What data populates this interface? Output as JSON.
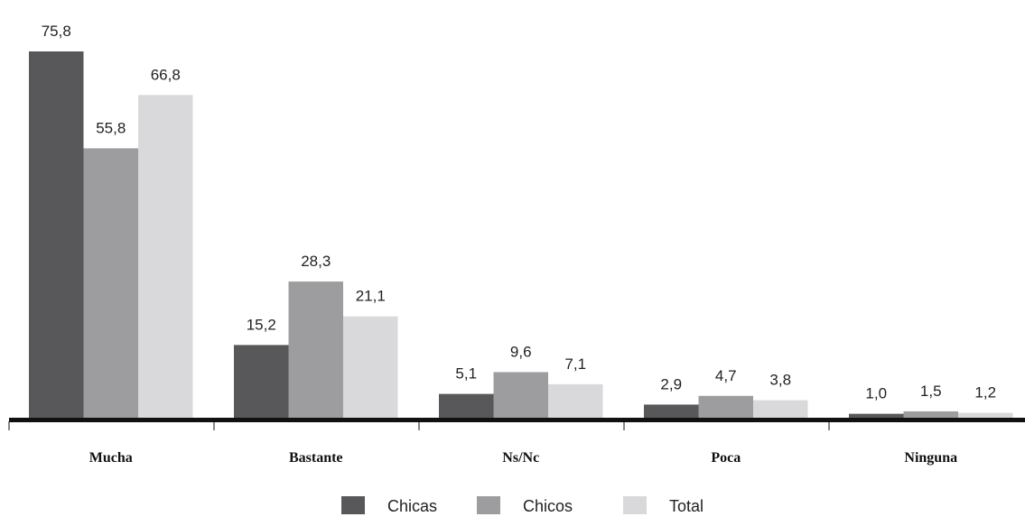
{
  "chart_data": {
    "type": "bar",
    "title": "",
    "xlabel": "",
    "ylabel": "",
    "categories": [
      "Mucha",
      "Bastante",
      "Ns/Nc",
      "Poca",
      "Ninguna"
    ],
    "series": [
      {
        "name": "Chicas",
        "color": "#58585a",
        "values": [
          75.8,
          15.2,
          5.1,
          2.9,
          1.0
        ],
        "labels": [
          "75,8",
          "15,2",
          "5,1",
          "2,9",
          "1,0"
        ]
      },
      {
        "name": "Chicos",
        "color": "#9d9d9f",
        "values": [
          55.8,
          28.3,
          9.6,
          4.7,
          1.5
        ],
        "labels": [
          "55,8",
          "28,3",
          "9,6",
          "4,7",
          "1,5"
        ]
      },
      {
        "name": "Total",
        "color": "#d9d9db",
        "values": [
          66.8,
          21.1,
          7.1,
          3.8,
          1.2
        ],
        "labels": [
          "66,8",
          "21,1",
          "7,1",
          "3,8",
          "1,2"
        ]
      }
    ],
    "ylim": [
      0,
      75.8
    ],
    "grid": false,
    "legend": "bottom-center",
    "axis_color": "#111111"
  }
}
